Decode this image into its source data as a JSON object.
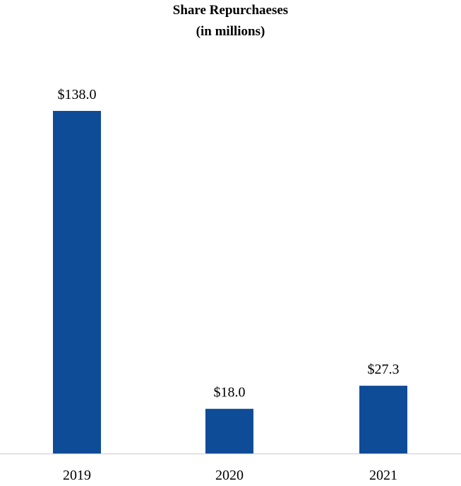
{
  "chart_data": {
    "type": "bar",
    "title": "Share Repurchaeses",
    "subtitle": "(in millions)",
    "categories": [
      "2019",
      "2020",
      "2021"
    ],
    "values": [
      138.0,
      18.0,
      27.3
    ],
    "data_labels": [
      "$138.0",
      "$18.0",
      "$27.3"
    ],
    "xlabel": "",
    "ylabel": "",
    "ylim": [
      0,
      138.0
    ],
    "grid": false,
    "legend": "none",
    "bar_color": "#0f4c97",
    "axis_color": "#d9d9d9"
  }
}
